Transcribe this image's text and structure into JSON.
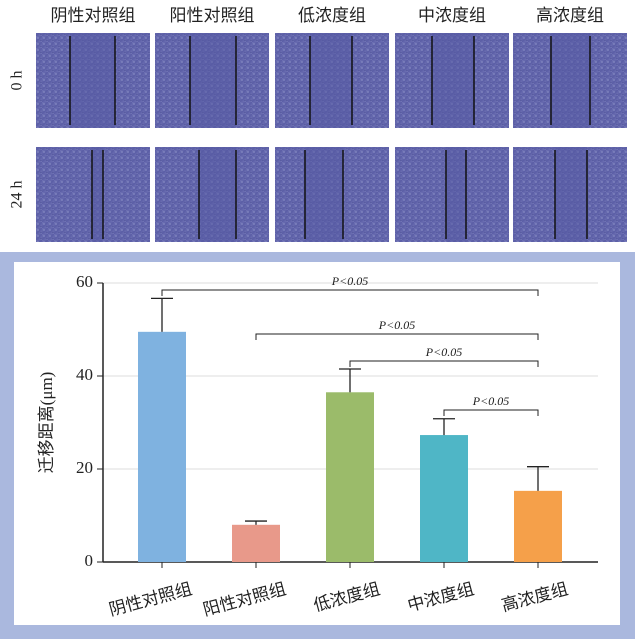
{
  "figure": {
    "columns": [
      "阴性对照组",
      "阳性对照组",
      "低浓度组",
      "中浓度组",
      "高浓度组"
    ],
    "rows": [
      "0 h",
      "24 h"
    ]
  },
  "chart_data": {
    "type": "bar",
    "y_label": "迁移距离(μm)",
    "categories": [
      "阴性对照组",
      "阳性对照组",
      "低浓度组",
      "中浓度组",
      "高浓度组"
    ],
    "values": [
      49.5,
      8,
      36.5,
      27.3,
      15.3
    ],
    "errors": [
      7.2,
      0.8,
      5,
      3.5,
      5.2
    ],
    "colors": [
      "#7fb2e0",
      "#e8998a",
      "#9bbb6a",
      "#4fb6c6",
      "#f5a04a"
    ],
    "ylim": [
      0,
      60
    ],
    "yticks": [
      0,
      20,
      40,
      60
    ],
    "grid": true,
    "annotations": [
      "P<0.05",
      "P<0.05",
      "P<0.05",
      "P<0.05"
    ]
  }
}
